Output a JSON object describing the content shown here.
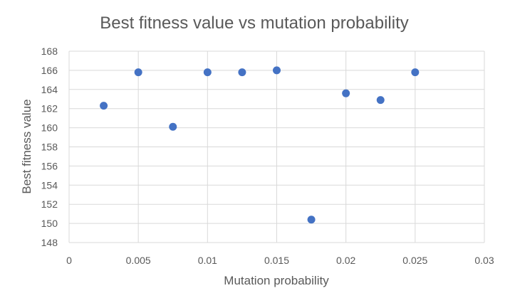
{
  "chart_data": {
    "type": "scatter",
    "title": "Best fitness value vs mutation probability",
    "xlabel": "Mutation probability",
    "ylabel": "Best fitness value",
    "xlim": [
      0,
      0.03
    ],
    "ylim": [
      148,
      168
    ],
    "xticks": [
      0,
      0.005,
      0.01,
      0.015,
      0.02,
      0.025,
      0.03
    ],
    "xtick_labels": [
      "0",
      "0.005",
      "0.01",
      "0.015",
      "0.02",
      "0.025",
      "0.03"
    ],
    "yticks": [
      148,
      150,
      152,
      154,
      156,
      158,
      160,
      162,
      164,
      166,
      168
    ],
    "ytick_labels": [
      "148",
      "150",
      "152",
      "154",
      "156",
      "158",
      "160",
      "162",
      "164",
      "166",
      "168"
    ],
    "grid": "horizontal and vertical",
    "legend": "none",
    "series": [
      {
        "color": "#4472c4",
        "x": [
          0.0025,
          0.005,
          0.0075,
          0.01,
          0.0125,
          0.015,
          0.0175,
          0.02,
          0.0225,
          0.025
        ],
        "y": [
          162.3,
          165.8,
          160.1,
          165.8,
          165.8,
          166.0,
          150.4,
          163.6,
          162.9,
          165.8
        ]
      }
    ]
  }
}
